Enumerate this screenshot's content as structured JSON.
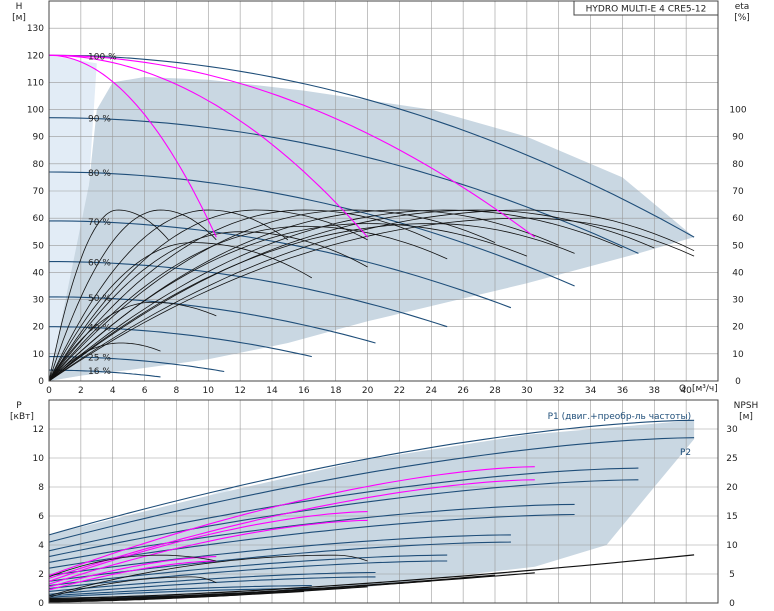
{
  "title": "HYDRO MULTI-E 4 CRE5-12",
  "colors": {
    "envelope": "#c9d7e2",
    "envelope_light": "#e2ecf6",
    "curve_blue": "#1f4e79",
    "curve_black": "#111111",
    "curve_magenta": "#ff00ff",
    "grid": "#9a9a9a"
  },
  "chart_data": [
    {
      "type": "line",
      "name": "head-efficiency",
      "ylabel": "H",
      "yunit": "[м]",
      "y2label": "eta",
      "y2unit": "[%]",
      "xlabel": "Q",
      "xunit": "[м³/ч]",
      "xlim": [
        0,
        42
      ],
      "ylim": [
        0,
        140
      ],
      "y2lim": [
        0,
        140
      ],
      "xticks": [
        0,
        2,
        4,
        6,
        8,
        10,
        12,
        14,
        16,
        18,
        20,
        22,
        24,
        26,
        28,
        30,
        32,
        34,
        36,
        38,
        40
      ],
      "yticks": [
        0,
        10,
        20,
        30,
        40,
        50,
        60,
        70,
        80,
        90,
        100,
        110,
        120,
        130
      ],
      "y2ticks": [
        0,
        10,
        20,
        30,
        40,
        50,
        60,
        70,
        80,
        90,
        100
      ],
      "grid": true,
      "envelope": {
        "upper": [
          [
            2.5,
            72
          ],
          [
            3,
            100
          ],
          [
            4,
            110
          ],
          [
            6,
            112
          ],
          [
            10,
            111
          ],
          [
            16,
            107
          ],
          [
            24,
            100
          ],
          [
            30,
            90
          ],
          [
            36,
            75
          ],
          [
            40.5,
            53
          ]
        ],
        "lower": [
          [
            40.5,
            53
          ],
          [
            37,
            47
          ],
          [
            30,
            36
          ],
          [
            25,
            29
          ],
          [
            20,
            22
          ],
          [
            15,
            14
          ],
          [
            10,
            8
          ],
          [
            5,
            4
          ],
          [
            2,
            2
          ],
          [
            0,
            0
          ]
        ]
      },
      "speed_labels": [
        {
          "text": "100 %",
          "x": 2.2,
          "y": 120
        },
        {
          "text": "90 %",
          "x": 2.2,
          "y": 97
        },
        {
          "text": "80 %",
          "x": 2.2,
          "y": 77
        },
        {
          "text": "70 %",
          "x": 2.2,
          "y": 59
        },
        {
          "text": "60 %",
          "x": 2.2,
          "y": 44
        },
        {
          "text": "50 %",
          "x": 2.2,
          "y": 31
        },
        {
          "text": "40 %",
          "x": 2.2,
          "y": 20
        },
        {
          "text": "25 %",
          "x": 2.2,
          "y": 9
        },
        {
          "text": "16 %",
          "x": 2.2,
          "y": 4
        }
      ],
      "head_curves": [
        {
          "name": "100 %",
          "h0": 120,
          "qmax": 40.5,
          "hmax": 53
        },
        {
          "name": "90 %",
          "h0": 97,
          "qmax": 37,
          "hmax": 47
        },
        {
          "name": "80 %",
          "h0": 77,
          "qmax": 33,
          "hmax": 35
        },
        {
          "name": "70 %",
          "h0": 59,
          "qmax": 29,
          "hmax": 27
        },
        {
          "name": "60 %",
          "h0": 44,
          "qmax": 25,
          "hmax": 20
        },
        {
          "name": "50 %",
          "h0": 31,
          "qmax": 20.5,
          "hmax": 14
        },
        {
          "name": "40 %",
          "h0": 20,
          "qmax": 16.5,
          "hmax": 9
        },
        {
          "name": "25 %",
          "h0": 9,
          "qmax": 11,
          "hmax": 3.5
        },
        {
          "name": "16 %",
          "h0": 4,
          "qmax": 7,
          "hmax": 1.5
        }
      ],
      "pump_curves": [
        {
          "h0": 120,
          "qmax": 10.5,
          "hmax": 53
        },
        {
          "h0": 120,
          "qmax": 20,
          "hmax": 53
        },
        {
          "h0": 120,
          "qmax": 30.5,
          "hmax": 53
        }
      ],
      "efficiency_curves": [
        {
          "qpeak": 4.3,
          "peak": 63,
          "qmax": 7.5,
          "end": 52
        },
        {
          "qpeak": 7,
          "peak": 63,
          "qmax": 10.5,
          "end": 52
        },
        {
          "qpeak": 10,
          "peak": 63,
          "qmax": 15,
          "end": 52
        },
        {
          "qpeak": 13,
          "peak": 63,
          "qmax": 20,
          "end": 52
        },
        {
          "qpeak": 16,
          "peak": 63,
          "qmax": 24,
          "end": 52
        },
        {
          "qpeak": 19,
          "peak": 63,
          "qmax": 28,
          "end": 51
        },
        {
          "qpeak": 22,
          "peak": 63,
          "qmax": 32,
          "end": 50
        },
        {
          "qpeak": 25,
          "peak": 63,
          "qmax": 36,
          "end": 49
        },
        {
          "qpeak": 27,
          "peak": 63,
          "qmax": 38,
          "end": 49
        },
        {
          "qpeak": 30,
          "peak": 63,
          "qmax": 40.5,
          "end": 48
        },
        {
          "qpeak": 30,
          "peak": 60,
          "qmax": 40.5,
          "end": 46
        },
        {
          "qpeak": 24,
          "peak": 58,
          "qmax": 33,
          "end": 47
        },
        {
          "qpeak": 20,
          "peak": 58,
          "qmax": 30,
          "end": 46
        },
        {
          "qpeak": 16,
          "peak": 57,
          "qmax": 25,
          "end": 45
        },
        {
          "qpeak": 12,
          "peak": 55,
          "qmax": 20,
          "end": 42
        },
        {
          "qpeak": 9,
          "peak": 51,
          "qmax": 16.5,
          "end": 38
        },
        {
          "qpeak": 6.5,
          "peak": 29,
          "qmax": 10.5,
          "end": 24
        },
        {
          "qpeak": 4.5,
          "peak": 14,
          "qmax": 7,
          "end": 11
        }
      ]
    },
    {
      "type": "line",
      "name": "power-npsh",
      "ylabel": "P",
      "yunit": "[кВт]",
      "y2label": "NPSH",
      "y2unit": "[м]",
      "xlim": [
        0,
        42
      ],
      "ylim": [
        0,
        14
      ],
      "y2lim": [
        0,
        35
      ],
      "yticks": [
        0,
        2,
        4,
        6,
        8,
        10,
        12
      ],
      "y2ticks": [
        0,
        5,
        10,
        15,
        20,
        25,
        30
      ],
      "grid": true,
      "series_labels": [
        {
          "text": "P1 (двиг.+преобр-ль частоты)",
          "x": 40.5,
          "y": 12.9
        },
        {
          "text": "P2",
          "x": 40.5,
          "y": 10.4
        }
      ],
      "envelope": {
        "upper": [
          [
            0,
            4.7
          ],
          [
            10,
            7.4
          ],
          [
            20,
            9.9
          ],
          [
            30,
            11.6
          ],
          [
            40.5,
            12.6
          ]
        ],
        "lower": [
          [
            40.5,
            11.3
          ],
          [
            38,
            8
          ],
          [
            35,
            4
          ],
          [
            30.5,
            2.5
          ],
          [
            25,
            1.8
          ],
          [
            20,
            1.1
          ],
          [
            15,
            0.7
          ],
          [
            10,
            0.5
          ],
          [
            5,
            0.4
          ],
          [
            0,
            0.3
          ]
        ]
      },
      "power_curves": [
        {
          "p0": 4.7,
          "qmax": 40.5,
          "pmax": 12.6
        },
        {
          "p0": 4.2,
          "qmax": 40.5,
          "pmax": 11.4
        },
        {
          "p0": 3.6,
          "qmax": 37,
          "pmax": 9.3
        },
        {
          "p0": 3.2,
          "qmax": 37,
          "pmax": 8.5
        },
        {
          "p0": 2.8,
          "qmax": 33,
          "pmax": 6.8
        },
        {
          "p0": 2.4,
          "qmax": 33,
          "pmax": 6.1
        },
        {
          "p0": 1.9,
          "qmax": 29,
          "pmax": 4.7
        },
        {
          "p0": 1.5,
          "qmax": 29,
          "pmax": 4.2
        },
        {
          "p0": 1.2,
          "qmax": 25,
          "pmax": 3.3
        },
        {
          "p0": 1.0,
          "qmax": 25,
          "pmax": 2.9
        },
        {
          "p0": 0.8,
          "qmax": 20.5,
          "pmax": 2.1
        },
        {
          "p0": 0.6,
          "qmax": 20.5,
          "pmax": 1.8
        },
        {
          "p0": 0.5,
          "qmax": 16.5,
          "pmax": 1.2
        },
        {
          "p0": 0.4,
          "qmax": 16.5,
          "pmax": 1.0
        },
        {
          "p0": 0.3,
          "qmax": 11,
          "pmax": 0.5
        },
        {
          "p0": 0.2,
          "qmax": 7,
          "pmax": 0.3
        }
      ],
      "magenta_power_curves": [
        {
          "p0": 1.9,
          "qmax": 30.5,
          "pmax": 9.4
        },
        {
          "p0": 1.7,
          "qmax": 30.5,
          "pmax": 8.5
        },
        {
          "p0": 1.5,
          "qmax": 20,
          "pmax": 6.3
        },
        {
          "p0": 1.3,
          "qmax": 20,
          "pmax": 5.7
        },
        {
          "p0": 1.1,
          "qmax": 10.5,
          "pmax": 3.2
        },
        {
          "p0": 0.9,
          "qmax": 10.5,
          "pmax": 2.9
        }
      ],
      "npsh_curves": [
        {
          "n0": 0.8,
          "qmax": 40.5,
          "nmax": 8.3
        },
        {
          "n0": 0.6,
          "qmax": 30.5,
          "nmax": 5.2
        },
        {
          "n0": 0.5,
          "qmax": 28,
          "nmax": 4.8
        },
        {
          "n0": 0.4,
          "qmax": 24,
          "nmax": 3.8
        },
        {
          "n0": 0.3,
          "qmax": 20,
          "nmax": 2.8
        },
        {
          "n0": 0.3,
          "qmax": 16,
          "nmax": 2.0
        },
        {
          "n0": 0.2,
          "qmax": 12,
          "nmax": 1.4
        }
      ],
      "power_bumps": [
        {
          "q0": 0,
          "q1": 10.5,
          "p0": 1.8,
          "peak": 3.3,
          "qpeak": 7
        },
        {
          "q0": 0,
          "q1": 20,
          "p0": 0.5,
          "peak": 3.3,
          "qpeak": 18
        },
        {
          "q0": 0,
          "q1": 10.5,
          "p0": 0.4,
          "peak": 1.8,
          "qpeak": 9
        }
      ]
    }
  ]
}
